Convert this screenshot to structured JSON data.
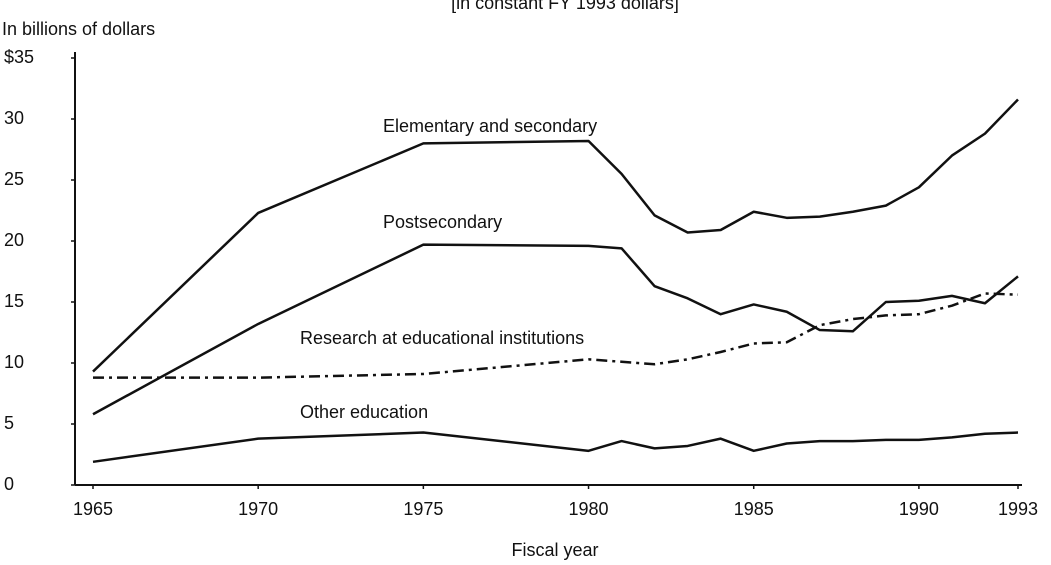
{
  "chart_data": {
    "type": "line",
    "subtitle": "[in constant FY 1993 dollars]",
    "y_label": "In billions of dollars",
    "x_label": "Fiscal year",
    "x": [
      1965,
      1970,
      1975,
      1980,
      1981,
      1982,
      1983,
      1984,
      1985,
      1986,
      1987,
      1988,
      1989,
      1990,
      1991,
      1992,
      1993
    ],
    "xlim": [
      1965,
      1993
    ],
    "xticks": [
      1965,
      1970,
      1975,
      1980,
      1985,
      1990,
      1993
    ],
    "ylim": [
      0,
      35
    ],
    "yticks": [
      0,
      5,
      10,
      15,
      20,
      25,
      30,
      {
        "value": 35,
        "label": "$35"
      }
    ],
    "grid": false,
    "series": [
      {
        "name": "Elementary and secondary",
        "color": "#111111",
        "dash": "solid",
        "values": [
          9.3,
          22.3,
          28,
          28.2,
          25.5,
          22.1,
          20.7,
          20.9,
          22.4,
          21.9,
          22,
          22.4,
          22.9,
          24.4,
          27,
          28.8,
          31.6
        ]
      },
      {
        "name": "Postsecondary",
        "color": "#111111",
        "dash": "solid",
        "values": [
          5.8,
          13.2,
          19.7,
          19.6,
          19.4,
          16.3,
          15.3,
          14,
          14.8,
          14.2,
          12.7,
          12.6,
          15,
          15.1,
          15.5,
          14.9,
          17.1
        ]
      },
      {
        "name": "Research at educational institutions",
        "color": "#111111",
        "dash": "dash-dot",
        "values": [
          8.8,
          8.8,
          9.1,
          10.3,
          10.1,
          9.9,
          10.3,
          10.9,
          11.6,
          11.7,
          13.1,
          13.6,
          13.9,
          14,
          14.7,
          15.7,
          15.6
        ]
      },
      {
        "name": "Other education",
        "color": "#111111",
        "dash": "solid",
        "values": [
          1.9,
          3.8,
          4.3,
          2.8,
          3.6,
          3,
          3.2,
          3.8,
          2.8,
          3.4,
          3.6,
          3.6,
          3.7,
          3.7,
          3.9,
          4.2,
          4.3
        ]
      }
    ]
  }
}
